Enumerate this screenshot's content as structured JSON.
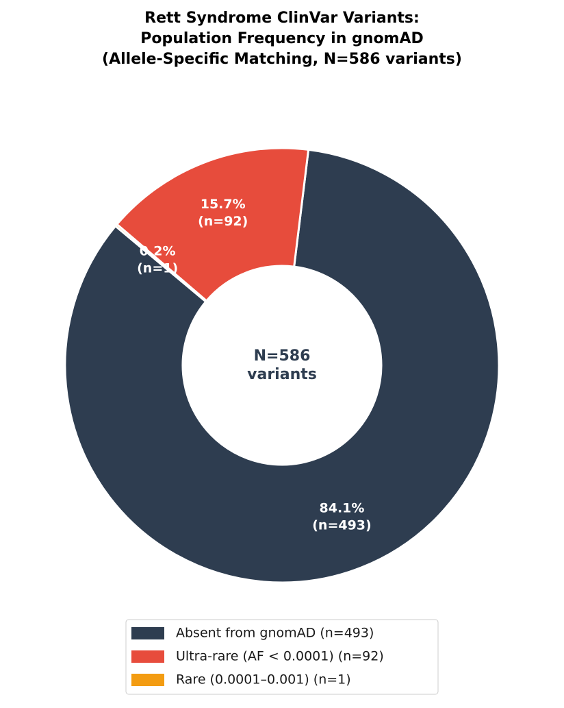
{
  "chart_data": {
    "type": "donut",
    "title": [
      "Rett Syndrome ClinVar Variants:",
      "Population Frequency in gnomAD",
      "(Allele-Specific Matching, N=586 variants)"
    ],
    "categories": [
      "Absent from gnomAD  (n=493)",
      "Rare (0.0001–0.001)  (n=1)",
      "Ultra-rare (AF < 0.0001)  (n=92)"
    ],
    "values": [
      493,
      1,
      92
    ],
    "value_labels": [
      [
        "84.1%",
        "(n=493)"
      ],
      [
        "0.2%",
        "(n=1)"
      ],
      [
        "15.7%",
        "(n=92)"
      ]
    ],
    "colors": [
      "#2e3d50",
      "#f39c12",
      "#e74c3c"
    ],
    "legend_order": [
      0,
      2,
      1
    ],
    "center_label": [
      "N=586",
      "variants"
    ]
  }
}
